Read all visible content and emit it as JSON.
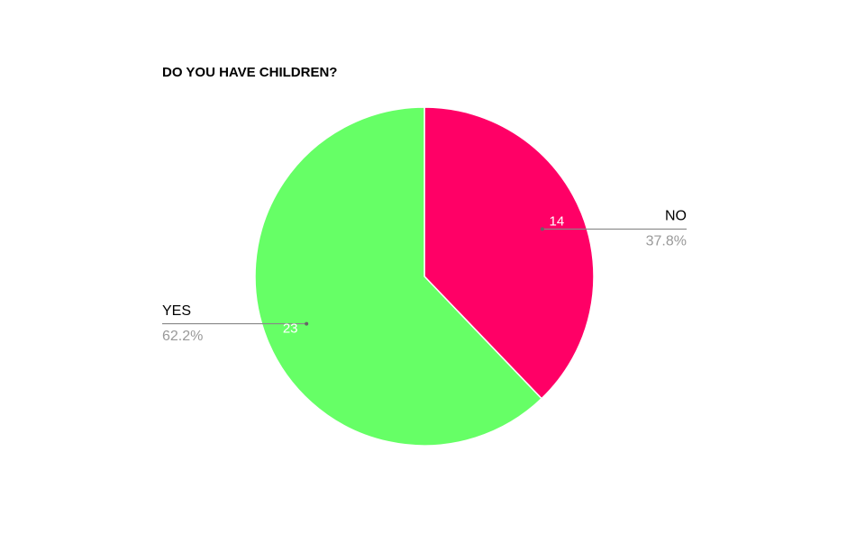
{
  "chart_data": {
    "type": "pie",
    "title": "DO YOU HAVE CHILDREN?",
    "categories": [
      "NO",
      "YES"
    ],
    "values": [
      14,
      23
    ],
    "percent_labels": [
      "37.8%",
      "62.2%"
    ],
    "colors": [
      "#ff0066",
      "#66ff66"
    ]
  }
}
